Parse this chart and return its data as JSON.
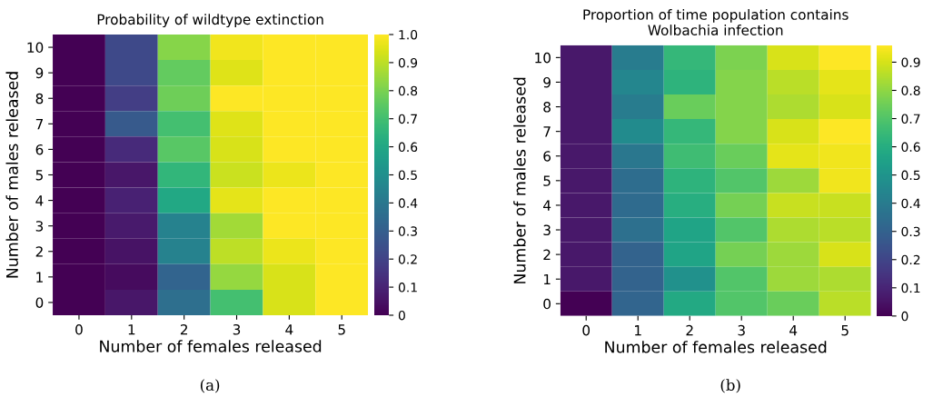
{
  "chart_data": [
    {
      "type": "heatmap",
      "title": "Probability of wildtype extinction",
      "xlabel": "Number of females released",
      "ylabel": "Number of males released",
      "categories": [
        "0",
        "1",
        "2",
        "3",
        "4",
        "5"
      ],
      "y_categories": [
        "10",
        "9",
        "8",
        "7",
        "6",
        "5",
        "4",
        "3",
        "2",
        "1",
        "0"
      ],
      "cells": [
        [
          0,
          0.22,
          0.82,
          0.98,
          1,
          1
        ],
        [
          0,
          0.22,
          0.76,
          0.95,
          1,
          1
        ],
        [
          0,
          0.18,
          0.78,
          1,
          1,
          1
        ],
        [
          0,
          0.28,
          0.7,
          0.95,
          1,
          1
        ],
        [
          0,
          0.12,
          0.74,
          0.94,
          1,
          1
        ],
        [
          0,
          0.06,
          0.66,
          0.92,
          0.97,
          1
        ],
        [
          0,
          0.09,
          0.6,
          0.96,
          1,
          1
        ],
        [
          0,
          0.07,
          0.44,
          0.86,
          1,
          1
        ],
        [
          0,
          0.05,
          0.44,
          0.9,
          0.97,
          1
        ],
        [
          0,
          0.03,
          0.32,
          0.84,
          0.94,
          1
        ],
        [
          0,
          0.06,
          0.36,
          0.7,
          0.94,
          1
        ]
      ],
      "clim": [
        0,
        1
      ],
      "cticks": [
        0,
        0.1,
        0.2,
        0.3,
        0.4,
        0.5,
        0.6,
        0.7,
        0.8,
        0.9,
        {
          "value": 1,
          "label": "1.0"
        }
      ],
      "annotations": [
        "(a)"
      ]
    },
    {
      "type": "heatmap",
      "title": "Proportion of time population contains\nWolbachia infection",
      "xlabel": "Number of females released",
      "ylabel": "Number of males released",
      "categories": [
        "0",
        "1",
        "2",
        "3",
        "4",
        "5"
      ],
      "y_categories": [
        "10",
        "9",
        "8",
        "7",
        "6",
        "5",
        "4",
        "3",
        "2",
        "1",
        "0"
      ],
      "cells": [
        [
          0.06,
          0.4,
          0.64,
          0.77,
          0.9,
          0.96
        ],
        [
          0.06,
          0.44,
          0.62,
          0.78,
          0.86,
          0.92
        ],
        [
          0.06,
          0.4,
          0.74,
          0.78,
          0.84,
          0.9
        ],
        [
          0.06,
          0.46,
          0.64,
          0.78,
          0.9,
          0.96
        ],
        [
          0.06,
          0.38,
          0.66,
          0.74,
          0.92,
          0.94
        ],
        [
          0.06,
          0.34,
          0.62,
          0.7,
          0.82,
          0.94
        ],
        [
          0.06,
          0.33,
          0.6,
          0.76,
          0.88,
          0.88
        ],
        [
          0.06,
          0.35,
          0.56,
          0.7,
          0.84,
          0.86
        ],
        [
          0.06,
          0.3,
          0.56,
          0.76,
          0.82,
          0.9
        ],
        [
          0.06,
          0.3,
          0.48,
          0.7,
          0.82,
          0.84
        ],
        [
          0,
          0.31,
          0.58,
          0.7,
          0.74,
          0.86
        ]
      ],
      "clim": [
        0,
        0.96
      ],
      "cticks": [
        0,
        0.1,
        0.2,
        0.3,
        0.4,
        0.5,
        0.6,
        0.7,
        0.8,
        0.9
      ],
      "annotations": [
        "(b)"
      ]
    }
  ]
}
